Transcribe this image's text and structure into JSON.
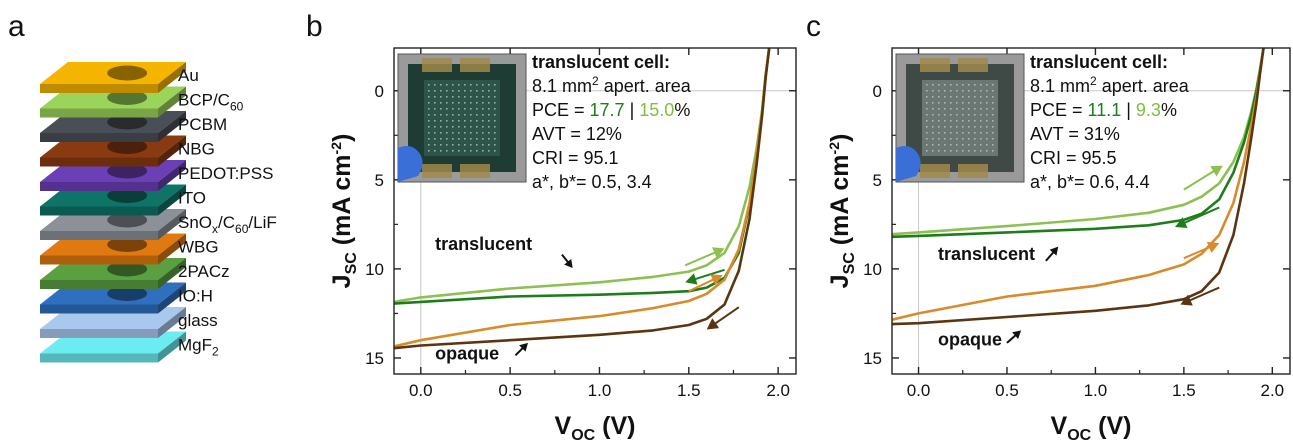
{
  "panel_a": {
    "letter": "a",
    "layers": [
      {
        "label": "Au",
        "sub": "",
        "tail": "",
        "color": "#f5b400"
      },
      {
        "label": "BCP/C",
        "sub": "60",
        "tail": "",
        "color": "#9bd45a"
      },
      {
        "label": "PCBM",
        "sub": "",
        "tail": "",
        "color": "#4a4e56"
      },
      {
        "label": "NBG",
        "sub": "",
        "tail": "",
        "color": "#8a3a10"
      },
      {
        "label": "PEDOT:PSS",
        "sub": "",
        "tail": "",
        "color": "#6b3fb5"
      },
      {
        "label": "ITO",
        "sub": "",
        "tail": "",
        "color": "#0e7468"
      },
      {
        "label": "SnO",
        "sub": "x",
        "tail": "/C60/LiF",
        "color": "#8b9099"
      },
      {
        "label": "WBG",
        "sub": "",
        "tail": "",
        "color": "#e07a10"
      },
      {
        "label": "2PACz",
        "sub": "",
        "tail": "",
        "color": "#5aa040"
      },
      {
        "label": "IO:H",
        "sub": "",
        "tail": "",
        "color": "#2e6fc0"
      },
      {
        "label": "glass",
        "sub": "",
        "tail": "",
        "color": "#aac8ee"
      },
      {
        "label": "MgF",
        "sub": "2",
        "tail": "",
        "color": "#6cecf0"
      }
    ]
  },
  "chart_data": [
    {
      "type": "line",
      "panel": "b",
      "xlabel": "VOC (V)",
      "ylabel": "JSC (mA cm-2)",
      "xlim": [
        -0.15,
        2.1
      ],
      "ylim": [
        15.9,
        -2.4
      ],
      "y_inverted": true,
      "x_ticks": [
        0.0,
        0.5,
        1.0,
        1.5,
        2.0
      ],
      "x_tick_labels": [
        "0.0",
        "0.5",
        "1.0",
        "1.5",
        "2.0"
      ],
      "y_ticks": [
        0,
        5,
        10,
        15
      ],
      "y_tick_labels": [
        "0",
        "5",
        "10",
        "15"
      ],
      "annotation": {
        "heading": "translucent cell:",
        "line2": "8.1 mm",
        "line2_sup": "2",
        "line2_tail": " apert. area",
        "pce_label": "PCE  = ",
        "pce_a": "17.7",
        "pce_sep": " | ",
        "pce_b": "15.0",
        "pce_unit": "%",
        "avt": "AVT  = 12%",
        "cri": "CRI   = 95.1",
        "ab": "a*, b*= 0.5, 3.4"
      },
      "curve_labels": {
        "top": "translucent",
        "bottom": "opaque"
      },
      "series": [
        {
          "group": "translucent",
          "color": "#8cc152",
          "points": [
            [
              -0.15,
              11.85
            ],
            [
              0.0,
              11.6
            ],
            [
              0.5,
              11.1
            ],
            [
              1.0,
              10.75
            ],
            [
              1.3,
              10.45
            ],
            [
              1.5,
              10.15
            ],
            [
              1.6,
              9.8
            ],
            [
              1.7,
              9.1
            ],
            [
              1.78,
              7.6
            ],
            [
              1.84,
              5.4
            ],
            [
              1.88,
              3.2
            ],
            [
              1.91,
              1.1
            ],
            [
              1.93,
              -0.9
            ],
            [
              1.95,
              -2.4
            ]
          ]
        },
        {
          "group": "translucent",
          "color": "#1e7d1a",
          "points": [
            [
              -0.15,
              11.95
            ],
            [
              0.0,
              11.85
            ],
            [
              0.5,
              11.55
            ],
            [
              1.0,
              11.45
            ],
            [
              1.3,
              11.35
            ],
            [
              1.5,
              11.25
            ],
            [
              1.6,
              11.05
            ],
            [
              1.7,
              10.5
            ],
            [
              1.78,
              9.1
            ],
            [
              1.84,
              6.4
            ],
            [
              1.88,
              3.6
            ],
            [
              1.91,
              1.2
            ],
            [
              1.93,
              -0.8
            ],
            [
              1.95,
              -2.4
            ]
          ]
        },
        {
          "group": "opaque",
          "color": "#d98a2b",
          "points": [
            [
              -0.15,
              14.35
            ],
            [
              0.0,
              14.0
            ],
            [
              0.5,
              13.15
            ],
            [
              1.0,
              12.65
            ],
            [
              1.3,
              12.2
            ],
            [
              1.5,
              11.8
            ],
            [
              1.6,
              11.4
            ],
            [
              1.7,
              10.6
            ],
            [
              1.78,
              8.9
            ],
            [
              1.84,
              6.3
            ],
            [
              1.88,
              3.6
            ],
            [
              1.91,
              1.2
            ],
            [
              1.93,
              -0.8
            ],
            [
              1.95,
              -2.4
            ]
          ]
        },
        {
          "group": "opaque",
          "color": "#5a3510",
          "points": [
            [
              -0.15,
              14.45
            ],
            [
              0.0,
              14.3
            ],
            [
              0.5,
              14.0
            ],
            [
              1.0,
              13.7
            ],
            [
              1.3,
              13.45
            ],
            [
              1.5,
              13.15
            ],
            [
              1.6,
              12.8
            ],
            [
              1.7,
              12.0
            ],
            [
              1.78,
              10.1
            ],
            [
              1.84,
              7.2
            ],
            [
              1.88,
              4.1
            ],
            [
              1.91,
              1.4
            ],
            [
              1.93,
              -0.7
            ],
            [
              1.95,
              -2.4
            ]
          ]
        }
      ],
      "arrows": [
        {
          "color": "#8cc152",
          "from": [
            1.48,
            9.8
          ],
          "to": [
            1.7,
            8.85
          ]
        },
        {
          "color": "#1e7d1a",
          "from": [
            1.7,
            10.05
          ],
          "to": [
            1.48,
            10.75
          ]
        },
        {
          "color": "#d98a2b",
          "from": [
            1.5,
            11.25
          ],
          "to": [
            1.69,
            10.35
          ]
        },
        {
          "color": "#5a3510",
          "from": [
            1.78,
            12.15
          ],
          "to": [
            1.6,
            13.4
          ]
        }
      ],
      "label_arrows": [
        {
          "from": [
            1.52,
            8.95
          ],
          "to": [
            1.7,
            8.0
          ],
          "color": "#ffffff"
        }
      ]
    },
    {
      "type": "line",
      "panel": "c",
      "xlabel": "VOC (V)",
      "ylabel": "JSC (mA cm-2)",
      "xlim": [
        -0.15,
        2.1
      ],
      "ylim": [
        15.9,
        -2.4
      ],
      "y_inverted": true,
      "x_ticks": [
        0.0,
        0.5,
        1.0,
        1.5,
        2.0
      ],
      "x_tick_labels": [
        "0.0",
        "0.5",
        "1.0",
        "1.5",
        "2.0"
      ],
      "y_ticks": [
        0,
        5,
        10,
        15
      ],
      "y_tick_labels": [
        "0",
        "5",
        "10",
        "15"
      ],
      "annotation": {
        "heading": "translucent cell:",
        "line2": "8.1 mm",
        "line2_sup": "2",
        "line2_tail": " apert. area",
        "pce_label": "PCE  = ",
        "pce_a": "11.1",
        "pce_sep": " | ",
        "pce_b": "9.3",
        "pce_unit": "%",
        "avt": "AVT  = 31%",
        "cri": "CRI   = 95.5",
        "ab": "a*, b*= 0.6, 4.4"
      },
      "curve_labels": {
        "top": "translucent",
        "bottom": "opaque"
      },
      "series": [
        {
          "group": "translucent",
          "color": "#8cc152",
          "points": [
            [
              -0.15,
              8.05
            ],
            [
              0.0,
              7.95
            ],
            [
              0.5,
              7.6
            ],
            [
              1.0,
              7.2
            ],
            [
              1.3,
              6.85
            ],
            [
              1.5,
              6.4
            ],
            [
              1.6,
              5.95
            ],
            [
              1.7,
              5.2
            ],
            [
              1.78,
              4.0
            ],
            [
              1.84,
              2.6
            ],
            [
              1.88,
              1.2
            ],
            [
              1.91,
              -0.1
            ],
            [
              1.93,
              -1.2
            ],
            [
              1.95,
              -2.4
            ]
          ]
        },
        {
          "group": "translucent",
          "color": "#1e7d1a",
          "points": [
            [
              -0.15,
              8.2
            ],
            [
              0.0,
              8.15
            ],
            [
              0.5,
              7.95
            ],
            [
              1.0,
              7.75
            ],
            [
              1.3,
              7.55
            ],
            [
              1.5,
              7.25
            ],
            [
              1.6,
              6.9
            ],
            [
              1.7,
              6.1
            ],
            [
              1.78,
              4.6
            ],
            [
              1.84,
              2.9
            ],
            [
              1.88,
              1.4
            ],
            [
              1.91,
              0.0
            ],
            [
              1.93,
              -1.1
            ],
            [
              1.95,
              -2.4
            ]
          ]
        },
        {
          "group": "opaque",
          "color": "#d98a2b",
          "points": [
            [
              -0.15,
              12.85
            ],
            [
              0.0,
              12.5
            ],
            [
              0.5,
              11.55
            ],
            [
              1.0,
              10.95
            ],
            [
              1.3,
              10.35
            ],
            [
              1.5,
              9.75
            ],
            [
              1.6,
              9.15
            ],
            [
              1.7,
              8.1
            ],
            [
              1.78,
              6.3
            ],
            [
              1.84,
              4.0
            ],
            [
              1.88,
              2.0
            ],
            [
              1.91,
              0.4
            ],
            [
              1.93,
              -1.0
            ],
            [
              1.95,
              -2.4
            ]
          ]
        },
        {
          "group": "opaque",
          "color": "#5a3510",
          "points": [
            [
              -0.15,
              13.1
            ],
            [
              0.0,
              13.05
            ],
            [
              0.5,
              12.7
            ],
            [
              1.0,
              12.35
            ],
            [
              1.3,
              12.05
            ],
            [
              1.5,
              11.7
            ],
            [
              1.6,
              11.25
            ],
            [
              1.7,
              10.2
            ],
            [
              1.78,
              8.1
            ],
            [
              1.84,
              5.2
            ],
            [
              1.88,
              2.7
            ],
            [
              1.91,
              0.7
            ],
            [
              1.93,
              -0.9
            ],
            [
              1.95,
              -2.4
            ]
          ]
        }
      ],
      "arrows": [
        {
          "color": "#8cc152",
          "from": [
            1.5,
            5.55
          ],
          "to": [
            1.72,
            4.2
          ]
        },
        {
          "color": "#1e7d1a",
          "from": [
            1.7,
            6.55
          ],
          "to": [
            1.45,
            7.65
          ]
        },
        {
          "color": "#d98a2b",
          "from": [
            1.5,
            9.4
          ],
          "to": [
            1.7,
            8.55
          ]
        },
        {
          "color": "#5a3510",
          "from": [
            1.7,
            11.05
          ],
          "to": [
            1.48,
            12.0
          ]
        }
      ],
      "label_arrows": []
    }
  ]
}
